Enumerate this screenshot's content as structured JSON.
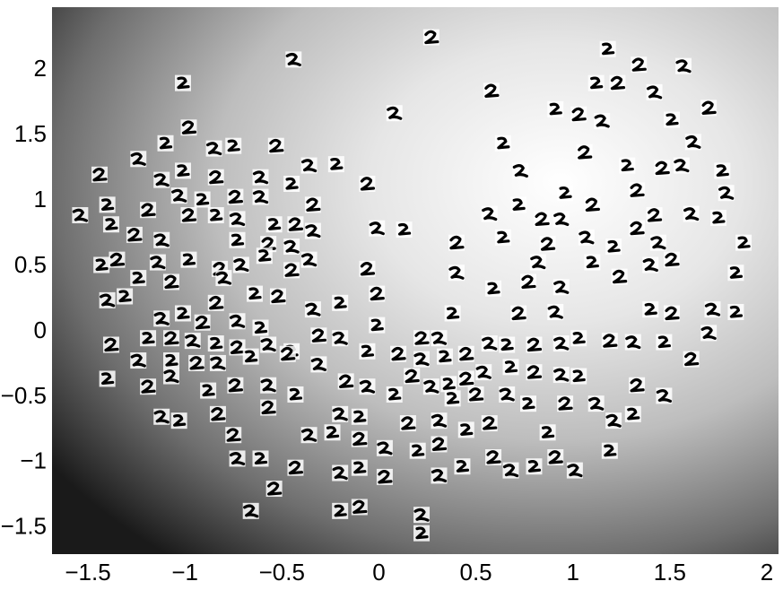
{
  "chart_data": {
    "type": "scatter",
    "xlim": [
      -1.685,
      2.06
    ],
    "ylim": [
      -1.7,
      2.48
    ],
    "xticks": [
      {
        "value": -1.5,
        "label": "−1.5"
      },
      {
        "value": -1,
        "label": "−1"
      },
      {
        "value": -0.5,
        "label": "−0.5"
      },
      0,
      0.5,
      1,
      1.5,
      2
    ],
    "yticks": [
      {
        "value": -1.5,
        "label": "−1.5"
      },
      {
        "value": -1,
        "label": "−1"
      },
      {
        "value": -0.5,
        "label": "−0.5"
      },
      0,
      0.5,
      1,
      1.5,
      2
    ],
    "x": [
      0.27,
      -0.44,
      -1.01,
      0.58,
      0.08,
      1.18,
      1.34,
      1.57,
      1.12,
      1.23,
      1.42,
      0.91,
      1.03,
      1.15,
      1.51,
      1.7,
      1.62,
      0.64,
      1.06,
      0.73,
      1.28,
      1.46,
      1.56,
      1.77,
      1.33,
      1.79,
      0.96,
      1.1,
      0.57,
      0.72,
      1.42,
      1.61,
      1.75,
      0.84,
      0.94,
      0.64,
      0.87,
      1.07,
      1.21,
      1.33,
      1.44,
      1.88,
      1.51,
      0.82,
      1.1,
      1.24,
      1.4,
      1.84,
      0.4,
      -0.01,
      0.13,
      -0.06,
      0.4,
      0.59,
      0.77,
      0.94,
      0.38,
      0.72,
      0.91,
      1.4,
      1.51,
      1.72,
      1.84,
      -1.44,
      -1.24,
      -1.1,
      -0.98,
      -0.85,
      -0.75,
      -0.53,
      -0.36,
      -0.22,
      -0.06,
      -1.12,
      -1.01,
      -0.84,
      -0.61,
      -0.45,
      -0.34,
      -1.54,
      -1.4,
      -1.19,
      -1.03,
      -0.91,
      -0.74,
      -0.61,
      -0.84,
      -0.98,
      -0.73,
      -0.54,
      -0.43,
      -0.34,
      -1.38,
      -1.26,
      -1.12,
      -0.73,
      -0.57,
      -0.45,
      -1.43,
      -1.35,
      -1.14,
      -0.98,
      -0.82,
      -0.71,
      -0.59,
      -0.45,
      -0.36,
      -1.24,
      -1.07,
      -0.8,
      -0.64,
      -0.52,
      -1.4,
      -1.31,
      -0.84,
      -0.34,
      -0.2,
      -0.01,
      -1.12,
      -1.01,
      -0.91,
      -0.73,
      -0.61,
      -0.31,
      -0.2,
      -0.01,
      0.22,
      0.31,
      -1.19,
      -1.07,
      -0.96,
      -0.84,
      -0.73,
      -0.57,
      -0.45,
      -1.38,
      -1.24,
      -1.07,
      -0.94,
      -0.83,
      -0.66,
      -0.47,
      -0.31,
      -0.06,
      0.1,
      0.22,
      0.34,
      0.45,
      0.57,
      0.66,
      0.8,
      0.94,
      1.03,
      1.19,
      1.31,
      1.47,
      1.61,
      1.7,
      -1.4,
      -1.19,
      -1.07,
      -0.88,
      -0.74,
      -0.57,
      -0.43,
      -0.17,
      -0.06,
      0.08,
      0.17,
      0.27,
      0.36,
      0.45,
      0.54,
      0.68,
      0.8,
      0.94,
      1.03,
      1.33,
      1.47,
      0.38,
      0.5,
      0.66,
      0.77,
      0.96,
      1.12,
      1.31,
      -0.57,
      -1.12,
      -1.03,
      -0.83,
      -0.2,
      -0.1,
      0.15,
      0.31,
      0.45,
      0.57,
      1.21,
      0.87,
      -0.75,
      -0.36,
      -0.24,
      -0.1,
      0.03,
      0.2,
      0.31,
      -0.73,
      -0.61,
      -0.43,
      -0.2,
      -0.1,
      0.03,
      0.31,
      0.43,
      0.59,
      0.68,
      0.8,
      0.91,
      1.01,
      1.19,
      -0.54,
      -0.66,
      -0.2,
      -0.1,
      0.22,
      0.22
    ],
    "y": [
      2.25,
      2.08,
      1.9,
      1.84,
      1.67,
      2.16,
      2.04,
      2.03,
      1.9,
      1.9,
      1.83,
      1.7,
      1.66,
      1.61,
      1.62,
      1.71,
      1.45,
      1.44,
      1.37,
      1.23,
      1.27,
      1.25,
      1.27,
      1.23,
      1.08,
      1.06,
      1.06,
      0.97,
      0.9,
      0.97,
      0.89,
      0.9,
      0.87,
      0.86,
      0.86,
      0.72,
      0.67,
      0.72,
      0.65,
      0.79,
      0.68,
      0.68,
      0.55,
      0.53,
      0.53,
      0.42,
      0.51,
      0.45,
      0.68,
      0.79,
      0.78,
      0.48,
      0.45,
      0.33,
      0.38,
      0.34,
      0.14,
      0.14,
      0.15,
      0.17,
      0.14,
      0.17,
      0.15,
      1.2,
      1.32,
      1.44,
      1.56,
      1.4,
      1.42,
      1.42,
      1.27,
      1.28,
      1.13,
      1.16,
      1.23,
      1.18,
      1.18,
      1.13,
      0.97,
      0.89,
      0.97,
      0.93,
      1.04,
      1.01,
      1.03,
      1.03,
      0.89,
      0.89,
      0.86,
      0.82,
      0.82,
      0.77,
      0.82,
      0.74,
      0.7,
      0.7,
      0.67,
      0.65,
      0.51,
      0.55,
      0.53,
      0.55,
      0.48,
      0.51,
      0.58,
      0.47,
      0.55,
      0.41,
      0.38,
      0.41,
      0.29,
      0.27,
      0.24,
      0.27,
      0.22,
      0.17,
      0.22,
      0.29,
      0.1,
      0.14,
      0.07,
      0.08,
      0.03,
      -0.03,
      -0.05,
      0.05,
      -0.05,
      -0.05,
      -0.05,
      -0.05,
      -0.07,
      -0.09,
      -0.12,
      -0.1,
      -0.15,
      -0.1,
      -0.22,
      -0.22,
      -0.24,
      -0.24,
      -0.19,
      -0.17,
      -0.25,
      -0.15,
      -0.17,
      -0.21,
      -0.19,
      -0.17,
      -0.09,
      -0.1,
      -0.1,
      -0.09,
      -0.05,
      -0.07,
      -0.08,
      -0.08,
      -0.21,
      -0.01,
      -0.36,
      -0.42,
      -0.34,
      -0.45,
      -0.41,
      -0.41,
      -0.48,
      -0.38,
      -0.42,
      -0.48,
      -0.34,
      -0.42,
      -0.4,
      -0.36,
      -0.31,
      -0.27,
      -0.31,
      -0.33,
      -0.34,
      -0.41,
      -0.49,
      -0.51,
      -0.48,
      -0.48,
      -0.55,
      -0.55,
      -0.55,
      -0.63,
      -0.58,
      -0.65,
      -0.68,
      -0.63,
      -0.63,
      -0.65,
      -0.7,
      -0.68,
      -0.75,
      -0.7,
      -0.68,
      -0.77,
      -0.79,
      -0.79,
      -0.77,
      -0.82,
      -0.89,
      -0.91,
      -0.86,
      -0.97,
      -0.97,
      -1.04,
      -1.08,
      -1.04,
      -1.11,
      -1.1,
      -1.03,
      -0.96,
      -1.06,
      -1.03,
      -0.96,
      -1.06,
      -0.91,
      -1.2,
      -1.37,
      -1.37,
      -1.34,
      -1.4,
      -1.54
    ]
  }
}
